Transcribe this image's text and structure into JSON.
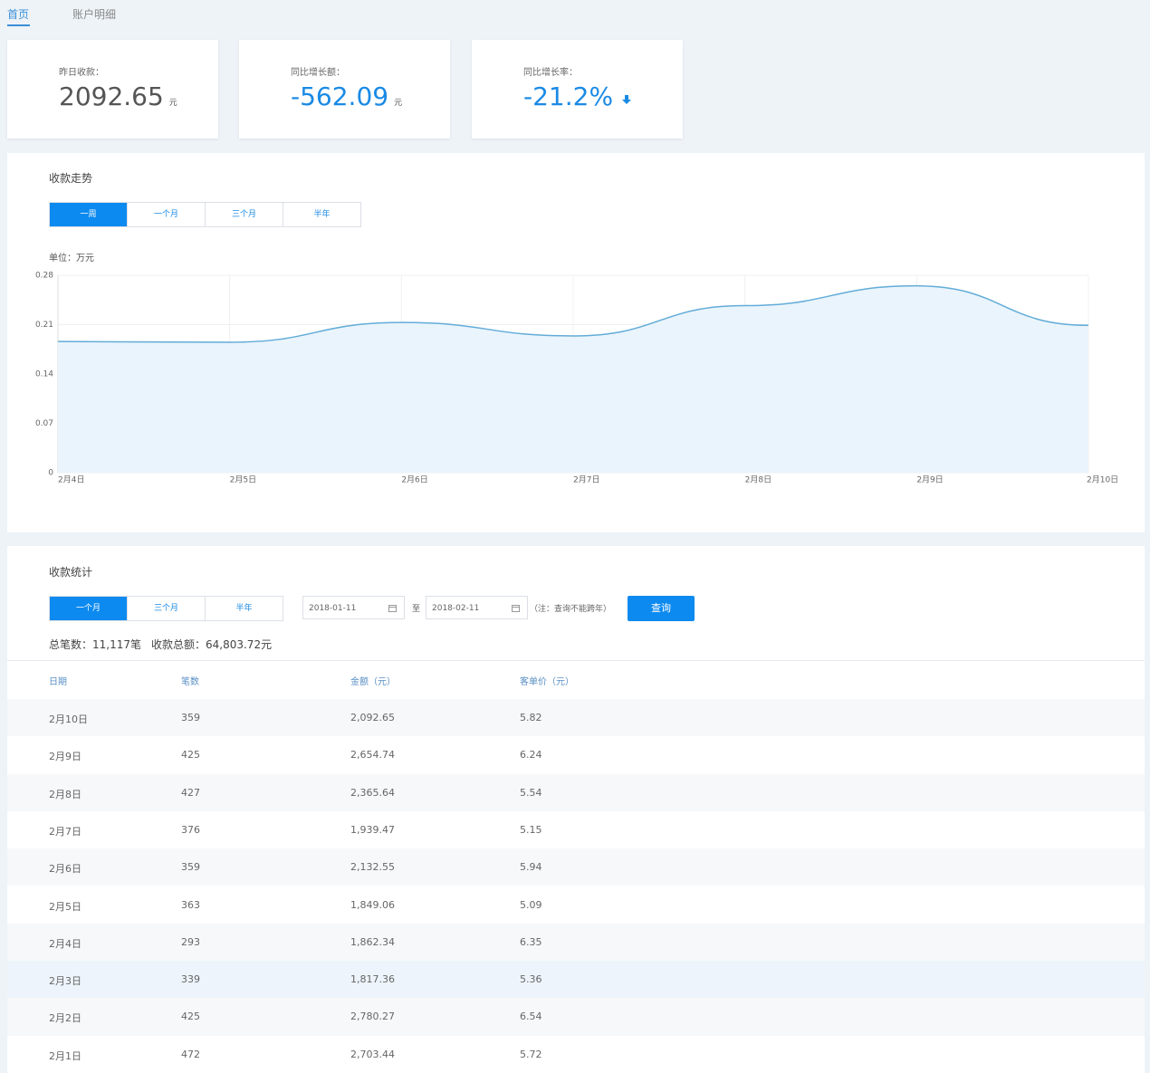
{
  "header": {
    "tabs": [
      "首页",
      "账户明细"
    ]
  },
  "cards": [
    {
      "label": "昨日收款：",
      "value": "2092.65",
      "unit": "元"
    },
    {
      "label": "同比增长额：",
      "value": "-562.09",
      "unit": "元"
    },
    {
      "label": "同比增长率：",
      "value": "-21.2%"
    }
  ],
  "trend": {
    "title": "收款走势",
    "ranges": [
      "一周",
      "一个月",
      "三个月",
      "半年"
    ]
  },
  "chart_data": {
    "type": "area",
    "ylabel": "单位：万元",
    "categories": [
      "2月4日",
      "2月5日",
      "2月6日",
      "2月7日",
      "2月8日",
      "2月9日",
      "2月10日"
    ],
    "values": [
      0.186,
      0.185,
      0.213,
      0.194,
      0.237,
      0.265,
      0.209
    ],
    "color": "#62acd8",
    "fill": "#eaf4fc",
    "ylim": [
      0,
      0.28
    ],
    "yticks": [
      0,
      0.07,
      0.14,
      0.21,
      0.28
    ],
    "grid": true
  },
  "stats": {
    "title": "收款统计",
    "ranges": [
      "一个月",
      "三个月",
      "半年"
    ],
    "start_date": "2018-01-11",
    "separator": "至",
    "end_date": "2018-02-11",
    "note": "（注：查询不能跨年）",
    "button": "查询",
    "total_count": "总笔数：11,117笔",
    "total_amount": "收款总额：64,803.72元"
  },
  "table": {
    "columns": [
      "日期",
      "笔数",
      "金额（元）",
      "客单价（元）"
    ],
    "rows": [
      [
        "2月10日",
        "359",
        "2,092.65",
        "5.82"
      ],
      [
        "2月9日",
        "425",
        "2,654.74",
        "6.24"
      ],
      [
        "2月8日",
        "427",
        "2,365.64",
        "5.54"
      ],
      [
        "2月7日",
        "376",
        "1,939.47",
        "5.15"
      ],
      [
        "2月6日",
        "359",
        "2,132.55",
        "5.94"
      ],
      [
        "2月5日",
        "363",
        "1,849.06",
        "5.09"
      ],
      [
        "2月4日",
        "293",
        "1,862.34",
        "6.35"
      ],
      [
        "2月3日",
        "339",
        "1,817.36",
        "5.36"
      ],
      [
        "2月2日",
        "425",
        "2,780.27",
        "6.54"
      ],
      [
        "2月1日",
        "472",
        "2,703.44",
        "5.72"
      ]
    ]
  }
}
